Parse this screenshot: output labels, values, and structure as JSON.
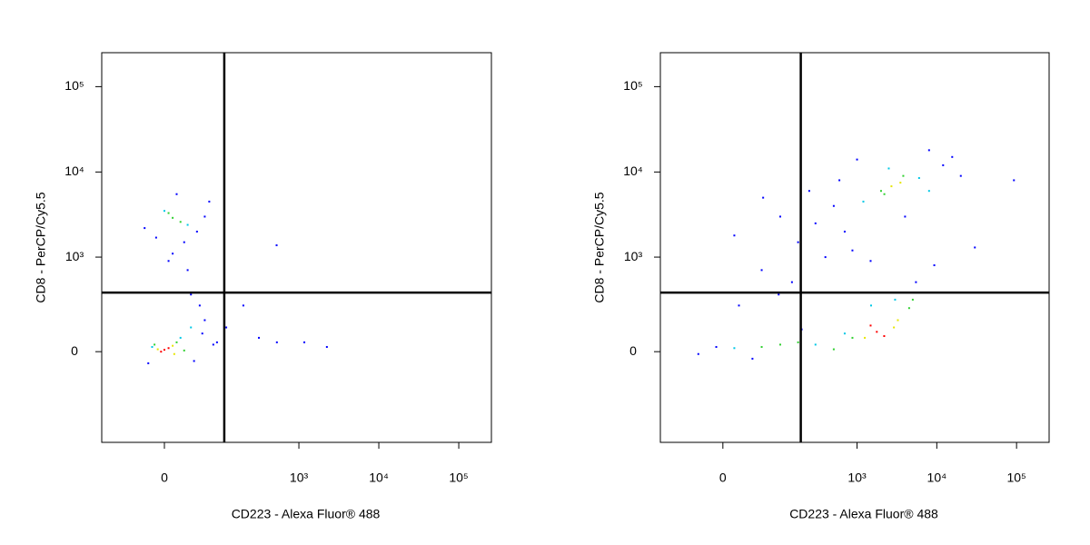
{
  "chart_data": [
    {
      "type": "scatter",
      "xlabel": "CD223 - Alexa Fluor® 488",
      "ylabel": "CD8 - PerCP/Cy5.5",
      "xlim": [
        -123,
        256000
      ],
      "ylim": [
        -900,
        250000
      ],
      "xticks": [
        0,
        {
          "value": 1000,
          "label": "10³"
        },
        {
          "value": 10000,
          "label": "10⁴"
        },
        {
          "value": 100000,
          "label": "10⁵"
        }
      ],
      "yticks": [
        0,
        {
          "value": 1000,
          "label": "10³"
        },
        {
          "value": 10000,
          "label": "10⁴"
        },
        {
          "value": 100000,
          "label": "10⁵"
        }
      ],
      "gate_x": 113,
      "gate_y": 370,
      "series": [
        {
          "color": "#0000ff",
          "x": [
            -20,
            40,
            60,
            50,
            30,
            10,
            -10,
            70,
            60,
            45,
            25,
            15,
            55,
            80,
            120,
            200,
            315,
            530,
            1170,
            2240,
            -25,
            35,
            90,
            5,
            526
          ],
          "values": [
            -50,
            -40,
            150,
            250,
            700,
            1100,
            1700,
            4500,
            3000,
            2000,
            1500,
            5500,
            80,
            30,
            110,
            250,
            60,
            40,
            40,
            20,
            2200,
            350,
            40,
            900,
            1380
          ]
        },
        {
          "color": "#00c8e6",
          "x": [
            0,
            30,
            20,
            -15,
            35
          ],
          "values": [
            3500,
            2400,
            60,
            20,
            110
          ]
        },
        {
          "color": "#30d030",
          "x": [
            -12,
            15,
            25,
            10,
            5,
            20
          ],
          "values": [
            30,
            40,
            5,
            2900,
            3300,
            2600
          ]
        },
        {
          "color": "#e6e600",
          "x": [
            -8,
            10,
            12
          ],
          "values": [
            10,
            25,
            -10
          ]
        },
        {
          "color": "#ff0000",
          "x": [
            0,
            5,
            -4
          ],
          "values": [
            8,
            15,
            0
          ]
        }
      ]
    },
    {
      "type": "scatter",
      "xlabel": "CD223 - Alexa Fluor® 488",
      "ylabel": "CD8 - PerCP/Cy5.5",
      "xlim": [
        -123,
        256000
      ],
      "ylim": [
        -900,
        250000
      ],
      "xticks": [
        0,
        {
          "value": 1000,
          "label": "10³"
        },
        {
          "value": 10000,
          "label": "10⁴"
        },
        {
          "value": 100000,
          "label": "10⁵"
        }
      ],
      "yticks": [
        0,
        {
          "value": 1000,
          "label": "10³"
        },
        {
          "value": 10000,
          "label": "10⁴"
        },
        {
          "value": 100000,
          "label": "10⁵"
        }
      ],
      "gate_x": 195,
      "gate_y": 370,
      "series": [
        {
          "color": "#0000ff",
          "x": [
            -32,
            -8,
            14,
            57,
            105,
            180,
            300,
            510,
            875,
            1480,
            5480,
            9300,
            15600,
            30000,
            92700,
            20,
            60,
            150,
            400,
            700,
            1000,
            600,
            250,
            12000,
            20000,
            8000,
            4000,
            200,
            100,
            40
          ],
          "values": [
            -10,
            20,
            1800,
            700,
            3000,
            1500,
            2500,
            4000,
            1200,
            900,
            500,
            800,
            15000,
            1300,
            8000,
            250,
            5000,
            500,
            1000,
            2000,
            14000,
            8000,
            6000,
            12000,
            9000,
            18000,
            3000,
            100,
            350,
            -30
          ]
        },
        {
          "color": "#00c8e6",
          "x": [
            14,
            300,
            700,
            1500,
            6000,
            1200,
            3000,
            8000,
            2500
          ],
          "values": [
            15,
            30,
            80,
            250,
            8500,
            4500,
            300,
            6000,
            11000
          ]
        },
        {
          "color": "#30d030",
          "x": [
            57,
            180,
            510,
            875,
            2200,
            4500,
            2000,
            3800,
            5000,
            105
          ],
          "values": [
            20,
            40,
            10,
            60,
            5500,
            230,
            6000,
            9000,
            300,
            30
          ]
        },
        {
          "color": "#e6e600",
          "x": [
            3250,
            1250,
            2700,
            2900,
            3500
          ],
          "values": [
            150,
            60,
            6800,
            110,
            7500
          ]
        },
        {
          "color": "#ff0000",
          "x": [
            1770,
            2190,
            1480
          ],
          "values": [
            88,
            68,
            120
          ]
        }
      ]
    }
  ]
}
